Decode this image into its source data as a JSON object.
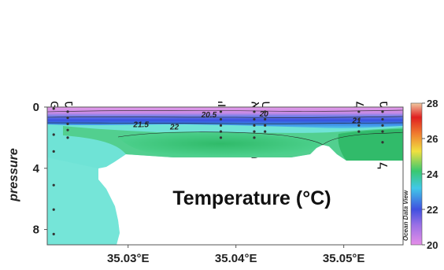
{
  "chart_data": {
    "type": "heatmap",
    "title": "Temperature (°C)",
    "ylabel": "pressure",
    "xlabel": "",
    "x_ticks": [
      {
        "value": 35.03,
        "label": "35.03°E"
      },
      {
        "value": 35.04,
        "label": "35.04°E"
      },
      {
        "value": 35.05,
        "label": "35.05°E"
      }
    ],
    "y_ticks": [
      0,
      4,
      8
    ],
    "xlim": [
      35.0225,
      35.0555
    ],
    "ylim": [
      0,
      9
    ],
    "y_reversed": true,
    "colorbar": {
      "ticks": [
        20,
        22,
        24,
        26,
        28
      ],
      "range": [
        20,
        28
      ],
      "brand": "Ocean Data View",
      "colors": [
        "#e68ee8",
        "#4050e0",
        "#40c8e8",
        "#38c870",
        "#f0e040",
        "#f08030",
        "#e02020",
        "#f0c8a0"
      ]
    },
    "stations": [
      {
        "name": "פתח הנמל",
        "lon": 35.0231
      },
      {
        "name": "מוצא הנחל",
        "lon": 35.0244
      },
      {
        "name": "יוליוס",
        "lon": 35.0386
      },
      {
        "name": "אקליפטוס",
        "lon": 35.0417
      },
      {
        "name": "הסתדרות",
        "lon": 35.0427
      },
      {
        "name": "לבניות",
        "lon": 35.0514
      },
      {
        "name": "מעלה הנחל",
        "lon": 35.0536
      }
    ],
    "contour_labels": [
      {
        "text": "21.5",
        "lon": 35.0312,
        "depth": 1.1
      },
      {
        "text": "22",
        "lon": 35.0343,
        "depth": 1.25
      },
      {
        "text": "20.5",
        "lon": 35.0375,
        "depth": 0.45
      },
      {
        "text": "20",
        "lon": 35.0426,
        "depth": 0.4
      },
      {
        "text": "21",
        "lon": 35.0512,
        "depth": 0.85
      }
    ],
    "sample_points": [
      {
        "lon": 35.0231,
        "depths": [
          0.1,
          1.8,
          2.9,
          5.1,
          6.7,
          8.3
        ]
      },
      {
        "lon": 35.0244,
        "depths": [
          0.3,
          0.7,
          1.1,
          1.5,
          2.0
        ]
      },
      {
        "lon": 35.0386,
        "depths": [
          0.3,
          0.8,
          1.2,
          1.6,
          2.0
        ]
      },
      {
        "lon": 35.0417,
        "depths": [
          0.3,
          0.8,
          1.2,
          1.6,
          2.0
        ]
      },
      {
        "lon": 35.0427,
        "depths": [
          0.3,
          0.8,
          1.2,
          1.6
        ]
      },
      {
        "lon": 35.0514,
        "depths": [
          0.3,
          0.8,
          1.2,
          1.6
        ]
      },
      {
        "lon": 35.0536,
        "depths": [
          0.3,
          0.8,
          1.2,
          1.6,
          2.3
        ]
      }
    ]
  }
}
